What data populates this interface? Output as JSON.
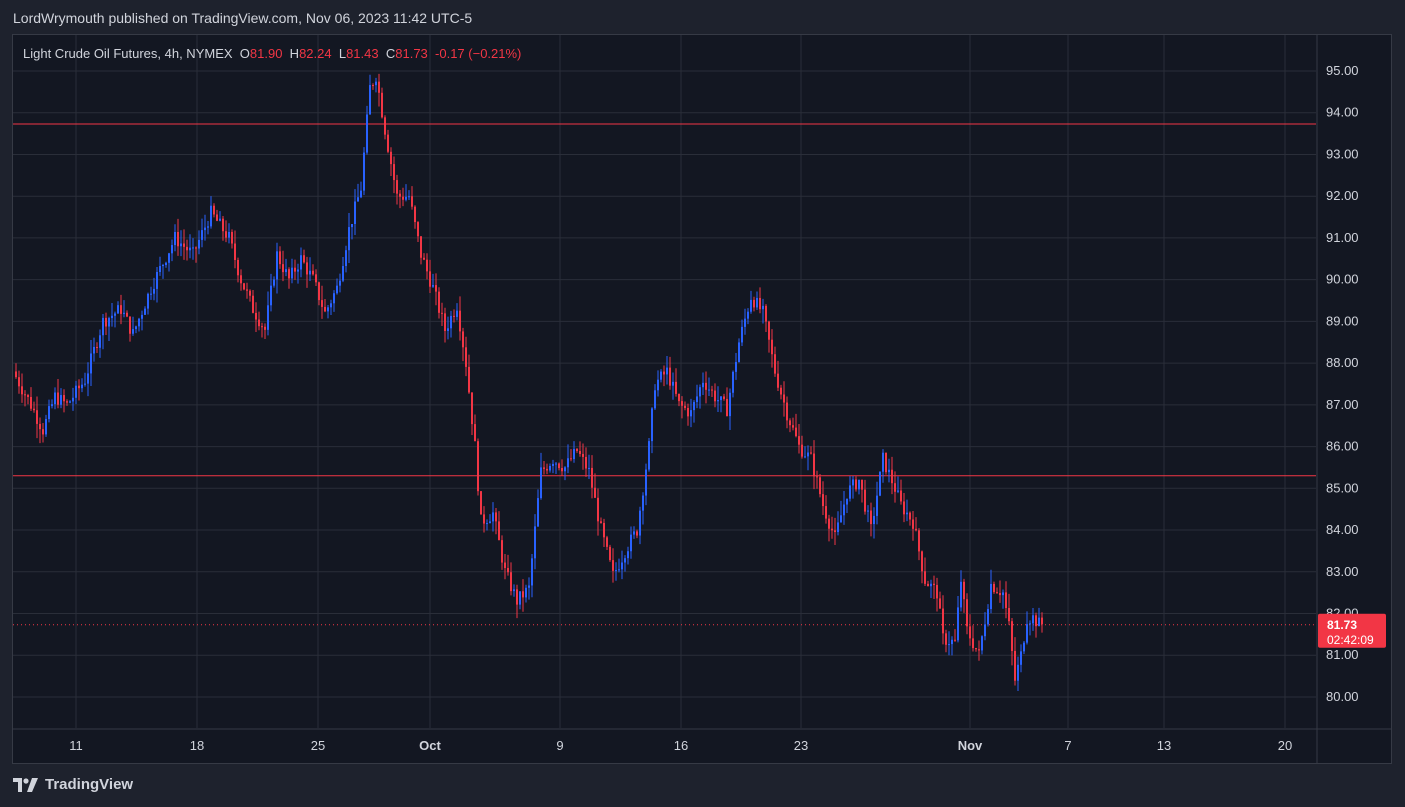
{
  "header": {
    "text": "LordWrymouth published on TradingView.com, Nov 06, 2023 11:42 UTC-5"
  },
  "legend": {
    "symbol": "Light Crude Oil Futures, 4h, NYMEX",
    "o_label": "O",
    "o_value": "81.90",
    "h_label": "H",
    "h_value": "82.24",
    "l_label": "L",
    "l_value": "81.43",
    "c_label": "C",
    "c_value": "81.73",
    "change": "-0.17 (−0.21%)"
  },
  "price_badge": {
    "price": "81.73",
    "countdown": "02:42:09"
  },
  "footer": {
    "brand": "TradingView"
  },
  "colors": {
    "up": "#2962ff",
    "down": "#f23645",
    "grid": "#2a2e39",
    "background": "#131722",
    "level_line": "#f23645"
  },
  "chart_data": {
    "type": "candlestick",
    "title": "Light Crude Oil Futures, 4h, NYMEX",
    "ylim": [
      79.3,
      95.7
    ],
    "y_ticks": [
      "80.00",
      "81.00",
      "82.00",
      "83.00",
      "84.00",
      "85.00",
      "86.00",
      "87.00",
      "88.00",
      "89.00",
      "90.00",
      "91.00",
      "92.00",
      "93.00",
      "94.00",
      "95.00"
    ],
    "x_tick_labels": [
      "11",
      "18",
      "25",
      "Oct",
      "9",
      "16",
      "23",
      "Nov",
      "7",
      "13",
      "20"
    ],
    "horizontal_levels": [
      93.73,
      85.3
    ],
    "last_price": 81.73,
    "grid": true,
    "path_points": [
      [
        0,
        87.8
      ],
      [
        6,
        87.0
      ],
      [
        10,
        86.4
      ],
      [
        14,
        87.2
      ],
      [
        18,
        87.0
      ],
      [
        24,
        87.6
      ],
      [
        30,
        89.0
      ],
      [
        36,
        89.3
      ],
      [
        40,
        88.7
      ],
      [
        46,
        89.8
      ],
      [
        54,
        91.0
      ],
      [
        60,
        90.6
      ],
      [
        66,
        91.6
      ],
      [
        72,
        91.0
      ],
      [
        76,
        90.0
      ],
      [
        80,
        89.3
      ],
      [
        84,
        88.8
      ],
      [
        88,
        90.6
      ],
      [
        92,
        90.0
      ],
      [
        96,
        90.5
      ],
      [
        100,
        90.0
      ],
      [
        104,
        89.2
      ],
      [
        108,
        89.8
      ],
      [
        112,
        91.2
      ],
      [
        116,
        92.2
      ],
      [
        119,
        94.6
      ],
      [
        121,
        94.9
      ],
      [
        124,
        93.6
      ],
      [
        128,
        92.0
      ],
      [
        132,
        92.0
      ],
      [
        136,
        90.6
      ],
      [
        140,
        89.8
      ],
      [
        144,
        88.8
      ],
      [
        148,
        89.4
      ],
      [
        151,
        88.0
      ],
      [
        154,
        86.0
      ],
      [
        156,
        84.2
      ],
      [
        160,
        84.4
      ],
      [
        164,
        83.0
      ],
      [
        168,
        82.3
      ],
      [
        172,
        82.6
      ],
      [
        176,
        85.4
      ],
      [
        180,
        85.7
      ],
      [
        184,
        85.5
      ],
      [
        188,
        85.9
      ],
      [
        192,
        85.4
      ],
      [
        196,
        84.0
      ],
      [
        200,
        82.9
      ],
      [
        204,
        83.5
      ],
      [
        208,
        84.0
      ],
      [
        212,
        86.0
      ],
      [
        214,
        87.5
      ],
      [
        218,
        87.8
      ],
      [
        222,
        87.0
      ],
      [
        226,
        86.8
      ],
      [
        230,
        87.6
      ],
      [
        234,
        87.2
      ],
      [
        238,
        86.9
      ],
      [
        242,
        88.5
      ],
      [
        246,
        89.6
      ],
      [
        250,
        89.2
      ],
      [
        254,
        87.8
      ],
      [
        258,
        86.8
      ],
      [
        262,
        86.0
      ],
      [
        266,
        85.7
      ],
      [
        270,
        84.6
      ],
      [
        274,
        83.8
      ],
      [
        278,
        84.9
      ],
      [
        282,
        85.2
      ],
      [
        286,
        84.0
      ],
      [
        290,
        85.7
      ],
      [
        294,
        85.0
      ],
      [
        296,
        84.6
      ],
      [
        300,
        84.2
      ],
      [
        304,
        82.8
      ],
      [
        308,
        82.5
      ],
      [
        310,
        81.4
      ],
      [
        314,
        81.3
      ],
      [
        316,
        82.8
      ],
      [
        318,
        81.6
      ],
      [
        322,
        81.0
      ],
      [
        326,
        82.7
      ],
      [
        330,
        82.5
      ],
      [
        332,
        81.7
      ],
      [
        334,
        80.4
      ],
      [
        336,
        81.0
      ],
      [
        338,
        81.9
      ],
      [
        340,
        81.9
      ],
      [
        342,
        81.75
      ]
    ]
  }
}
